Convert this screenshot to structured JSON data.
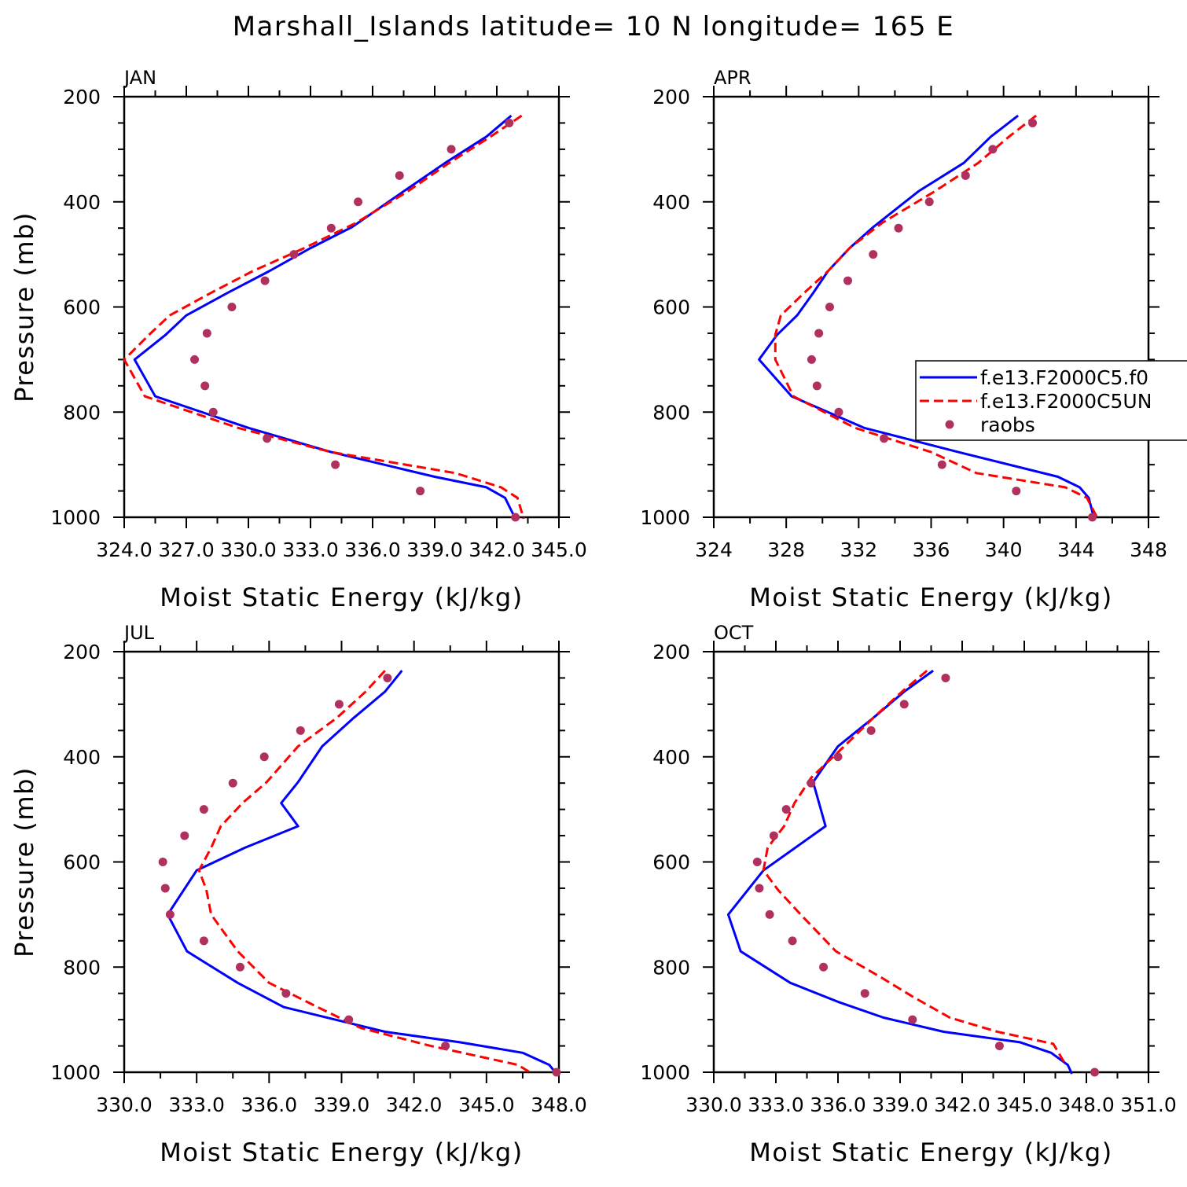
{
  "figure": {
    "title": "Marshall_Islands  latitude= 10 N longitude= 165 E"
  },
  "legend": {
    "entries": [
      {
        "label": "f.e13.F2000C5.f0",
        "color": "#0000ff",
        "style": "solid"
      },
      {
        "label": "f.e13.F2000C5UN",
        "color": "#ff0000",
        "style": "dashed"
      },
      {
        "label": "raobs",
        "color": "#b03060",
        "style": "marker"
      }
    ]
  },
  "chart_data": [
    {
      "type": "line",
      "title": "JAN",
      "xlabel": "Moist Static Energy (kJ/kg)",
      "ylabel": "Pressure (mb)",
      "xlim": [
        324,
        345
      ],
      "ylim": [
        200,
        1000
      ],
      "y_inverted": true,
      "xticks": [
        324,
        327,
        330,
        333,
        336,
        339,
        342,
        345
      ],
      "xtick_labels": [
        "324.0",
        "327.0",
        "330.0",
        "333.0",
        "336.0",
        "339.0",
        "342.0",
        "345.0"
      ],
      "yticks": [
        200,
        400,
        600,
        800,
        1000
      ],
      "ytick_labels": [
        "200",
        "400",
        "600",
        "800",
        "1000"
      ],
      "series": [
        {
          "name": "f.e13.F2000C5.f0",
          "color": "#0000ff",
          "style": "solid",
          "x": [
            342.7,
            341.5,
            339.5,
            337.5,
            335.0,
            333.0,
            331.0,
            329.0,
            327.0,
            326.0,
            324.5,
            325.5,
            330.0,
            334.0,
            339.0,
            341.5,
            342.4,
            342.9
          ],
          "y": [
            236,
            276,
            326,
            380,
            448,
            488,
            532,
            573,
            616,
            653,
            700,
            770,
            830,
            876,
            923,
            943,
            963,
            1003
          ]
        },
        {
          "name": "f.e13.F2000C5UN",
          "color": "#ff0000",
          "style": "dashed",
          "x": [
            343.2,
            341.7,
            339.7,
            337.7,
            335.2,
            332.7,
            330.2,
            328.2,
            326.2,
            325.2,
            324.0,
            325.0,
            329.5,
            334.0,
            340.0,
            342.2,
            343.0,
            343.3
          ],
          "y": [
            236,
            276,
            326,
            380,
            440,
            488,
            532,
            573,
            616,
            653,
            700,
            770,
            830,
            876,
            916,
            943,
            963,
            1003
          ]
        },
        {
          "name": "raobs",
          "color": "#b03060",
          "style": "marker",
          "x": [
            342.6,
            339.8,
            337.3,
            335.3,
            334.0,
            332.2,
            330.8,
            329.2,
            328.0,
            327.4,
            327.9,
            328.3,
            330.9,
            334.2,
            338.3,
            342.9
          ],
          "y": [
            250,
            300,
            350,
            400,
            450,
            500,
            550,
            600,
            650,
            700,
            750,
            800,
            850,
            900,
            950,
            1000
          ]
        }
      ]
    },
    {
      "type": "line",
      "title": "APR",
      "xlabel": "Moist Static Energy (kJ/kg)",
      "ylabel": "",
      "xlim": [
        324,
        348
      ],
      "ylim": [
        200,
        1000
      ],
      "y_inverted": true,
      "xticks": [
        324,
        328,
        332,
        336,
        340,
        344,
        348
      ],
      "xtick_labels": [
        "324",
        "328",
        "332",
        "336",
        "340",
        "344",
        "348"
      ],
      "yticks": [
        200,
        400,
        600,
        800,
        1000
      ],
      "ytick_labels": [
        "200",
        "400",
        "600",
        "800",
        "1000"
      ],
      "series": [
        {
          "name": "f.e13.F2000C5.f0",
          "color": "#0000ff",
          "style": "solid",
          "x": [
            340.8,
            339.3,
            337.8,
            335.3,
            332.8,
            331.5,
            330.3,
            329.5,
            328.6,
            327.5,
            326.5,
            328.3,
            332.3,
            337.5,
            343.0,
            344.2,
            344.7,
            345.0
          ],
          "y": [
            236,
            276,
            326,
            380,
            448,
            488,
            532,
            573,
            616,
            653,
            700,
            770,
            830,
            876,
            923,
            943,
            963,
            1003
          ]
        },
        {
          "name": "f.e13.F2000C5UN",
          "color": "#ff0000",
          "style": "dashed",
          "x": [
            341.8,
            340.3,
            338.6,
            336.2,
            333.3,
            331.5,
            330.3,
            329.0,
            327.7,
            327.4,
            327.4,
            328.4,
            331.8,
            336.0,
            338.5,
            343.4,
            344.6,
            345.2
          ],
          "y": [
            236,
            276,
            326,
            380,
            440,
            488,
            532,
            573,
            616,
            653,
            700,
            770,
            830,
            876,
            916,
            943,
            963,
            1003
          ]
        },
        {
          "name": "raobs",
          "color": "#b03060",
          "style": "marker",
          "x": [
            341.6,
            339.4,
            337.9,
            335.9,
            334.2,
            332.8,
            331.4,
            330.4,
            329.8,
            329.4,
            329.7,
            330.9,
            333.4,
            336.6,
            340.7,
            344.9
          ],
          "y": [
            250,
            300,
            350,
            400,
            450,
            500,
            550,
            600,
            650,
            700,
            750,
            800,
            850,
            900,
            950,
            1000
          ]
        }
      ]
    },
    {
      "type": "line",
      "title": "JUL",
      "xlabel": "Moist Static Energy (kJ/kg)",
      "ylabel": "Pressure (mb)",
      "xlim": [
        330,
        348
      ],
      "ylim": [
        200,
        1000
      ],
      "y_inverted": true,
      "xticks": [
        330,
        333,
        336,
        339,
        342,
        345,
        348
      ],
      "xtick_labels": [
        "330.0",
        "333.0",
        "336.0",
        "339.0",
        "342.0",
        "345.0",
        "348.0"
      ],
      "yticks": [
        200,
        400,
        600,
        800,
        1000
      ],
      "ytick_labels": [
        "200",
        "400",
        "600",
        "800",
        "1000"
      ],
      "series": [
        {
          "name": "f.e13.F2000C5.f0",
          "color": "#0000ff",
          "style": "solid",
          "x": [
            341.5,
            340.8,
            339.5,
            338.2,
            337.2,
            336.5,
            337.2,
            335.0,
            333.0,
            331.8,
            332.6,
            334.7,
            336.6,
            340.8,
            343.9,
            346.5,
            347.6,
            347.9
          ],
          "y": [
            236,
            276,
            326,
            380,
            448,
            488,
            532,
            573,
            616,
            700,
            770,
            830,
            876,
            923,
            943,
            963,
            986,
            1003
          ]
        },
        {
          "name": "f.e13.F2000C5UN",
          "color": "#ff0000",
          "style": "dashed",
          "x": [
            340.8,
            340.0,
            338.8,
            337.2,
            335.9,
            334.9,
            334.0,
            333.6,
            333.1,
            333.4,
            333.6,
            334.7,
            336.0,
            338.0,
            339.8,
            342.7,
            346.3,
            346.9
          ],
          "y": [
            236,
            276,
            326,
            380,
            448,
            488,
            532,
            573,
            616,
            653,
            700,
            770,
            830,
            876,
            916,
            950,
            986,
            1003
          ]
        },
        {
          "name": "raobs",
          "color": "#b03060",
          "style": "marker",
          "x": [
            340.9,
            338.9,
            337.3,
            335.8,
            334.5,
            333.3,
            332.5,
            331.6,
            331.7,
            331.9,
            333.3,
            334.8,
            336.7,
            339.3,
            343.3,
            347.9
          ],
          "y": [
            250,
            300,
            350,
            400,
            450,
            500,
            550,
            600,
            650,
            700,
            750,
            800,
            850,
            900,
            950,
            1000
          ]
        }
      ]
    },
    {
      "type": "line",
      "title": "OCT",
      "xlabel": "Moist Static Energy (kJ/kg)",
      "ylabel": "",
      "xlim": [
        330,
        351
      ],
      "ylim": [
        200,
        1000
      ],
      "y_inverted": true,
      "xticks": [
        330,
        333,
        336,
        339,
        342,
        345,
        348,
        351
      ],
      "xtick_labels": [
        "330.0",
        "333.0",
        "336.0",
        "339.0",
        "342.0",
        "345.0",
        "348.0",
        "351.0"
      ],
      "yticks": [
        200,
        400,
        600,
        800,
        1000
      ],
      "ytick_labels": [
        "200",
        "400",
        "600",
        "800",
        "1000"
      ],
      "series": [
        {
          "name": "f.e13.F2000C5.f0",
          "color": "#0000ff",
          "style": "solid",
          "x": [
            340.6,
            339.2,
            337.7,
            336.0,
            334.8,
            335.4,
            332.4,
            330.7,
            331.3,
            333.7,
            336.0,
            338.2,
            341.1,
            344.8,
            346.3,
            347.1,
            347.3
          ],
          "y": [
            236,
            276,
            326,
            380,
            448,
            532,
            616,
            700,
            770,
            830,
            866,
            896,
            923,
            943,
            963,
            986,
            1003
          ]
        },
        {
          "name": "f.e13.F2000C5UN",
          "color": "#ff0000",
          "style": "dashed",
          "x": [
            340.3,
            339.1,
            337.7,
            336.3,
            334.7,
            333.9,
            333.4,
            332.6,
            332.4,
            333.1,
            334.2,
            335.9,
            338.1,
            339.6,
            341.4,
            343.7,
            346.4,
            347.0
          ],
          "y": [
            236,
            276,
            326,
            380,
            440,
            488,
            532,
            573,
            616,
            653,
            700,
            770,
            820,
            856,
            896,
            923,
            946,
            986
          ]
        },
        {
          "name": "raobs",
          "color": "#b03060",
          "style": "marker",
          "x": [
            341.2,
            339.2,
            337.6,
            336.0,
            334.7,
            333.5,
            332.9,
            332.1,
            332.2,
            332.7,
            333.8,
            335.3,
            337.3,
            339.6,
            343.8,
            348.4
          ],
          "y": [
            250,
            300,
            350,
            400,
            450,
            500,
            550,
            600,
            650,
            700,
            750,
            800,
            850,
            900,
            950,
            1000
          ]
        }
      ]
    }
  ]
}
